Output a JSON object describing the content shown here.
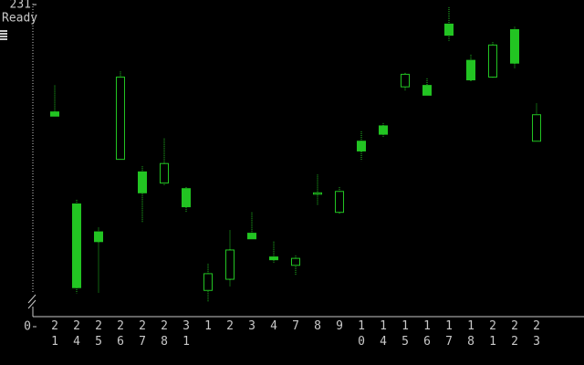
{
  "status": "Ready",
  "chart_data": {
    "type": "candlestick",
    "categories": [
      "21",
      "24",
      "25",
      "26",
      "27",
      "28",
      "31",
      "1",
      "2",
      "3",
      "4",
      "7",
      "8",
      "9",
      "10",
      "14",
      "15",
      "16",
      "17",
      "18",
      "21",
      "22",
      "23"
    ],
    "open": [
      154,
      88,
      68,
      120,
      111,
      103,
      99,
      26,
      34,
      67,
      50,
      44,
      95,
      82,
      133,
      144,
      172,
      173,
      217,
      191,
      179,
      213,
      133
    ],
    "high": [
      173,
      91,
      71,
      183,
      115,
      135,
      100,
      45,
      69,
      82,
      61,
      51,
      109,
      100,
      140,
      146,
      182,
      178,
      229,
      195,
      204,
      215,
      160
    ],
    "low": [
      151,
      24,
      24,
      120,
      75,
      101,
      82,
      18,
      29,
      63,
      46,
      37,
      87,
      81,
      119,
      136,
      169,
      166,
      205,
      176,
      178,
      185,
      133
    ],
    "close": [
      151,
      28,
      61,
      179,
      96,
      117,
      86,
      38,
      55,
      63,
      48,
      49,
      96,
      97,
      126,
      138,
      181,
      166,
      209,
      177,
      202,
      189,
      152
    ],
    "color": "#22c422",
    "ylim": [
      0,
      231
    ],
    "yticks": [
      0,
      231
    ]
  }
}
